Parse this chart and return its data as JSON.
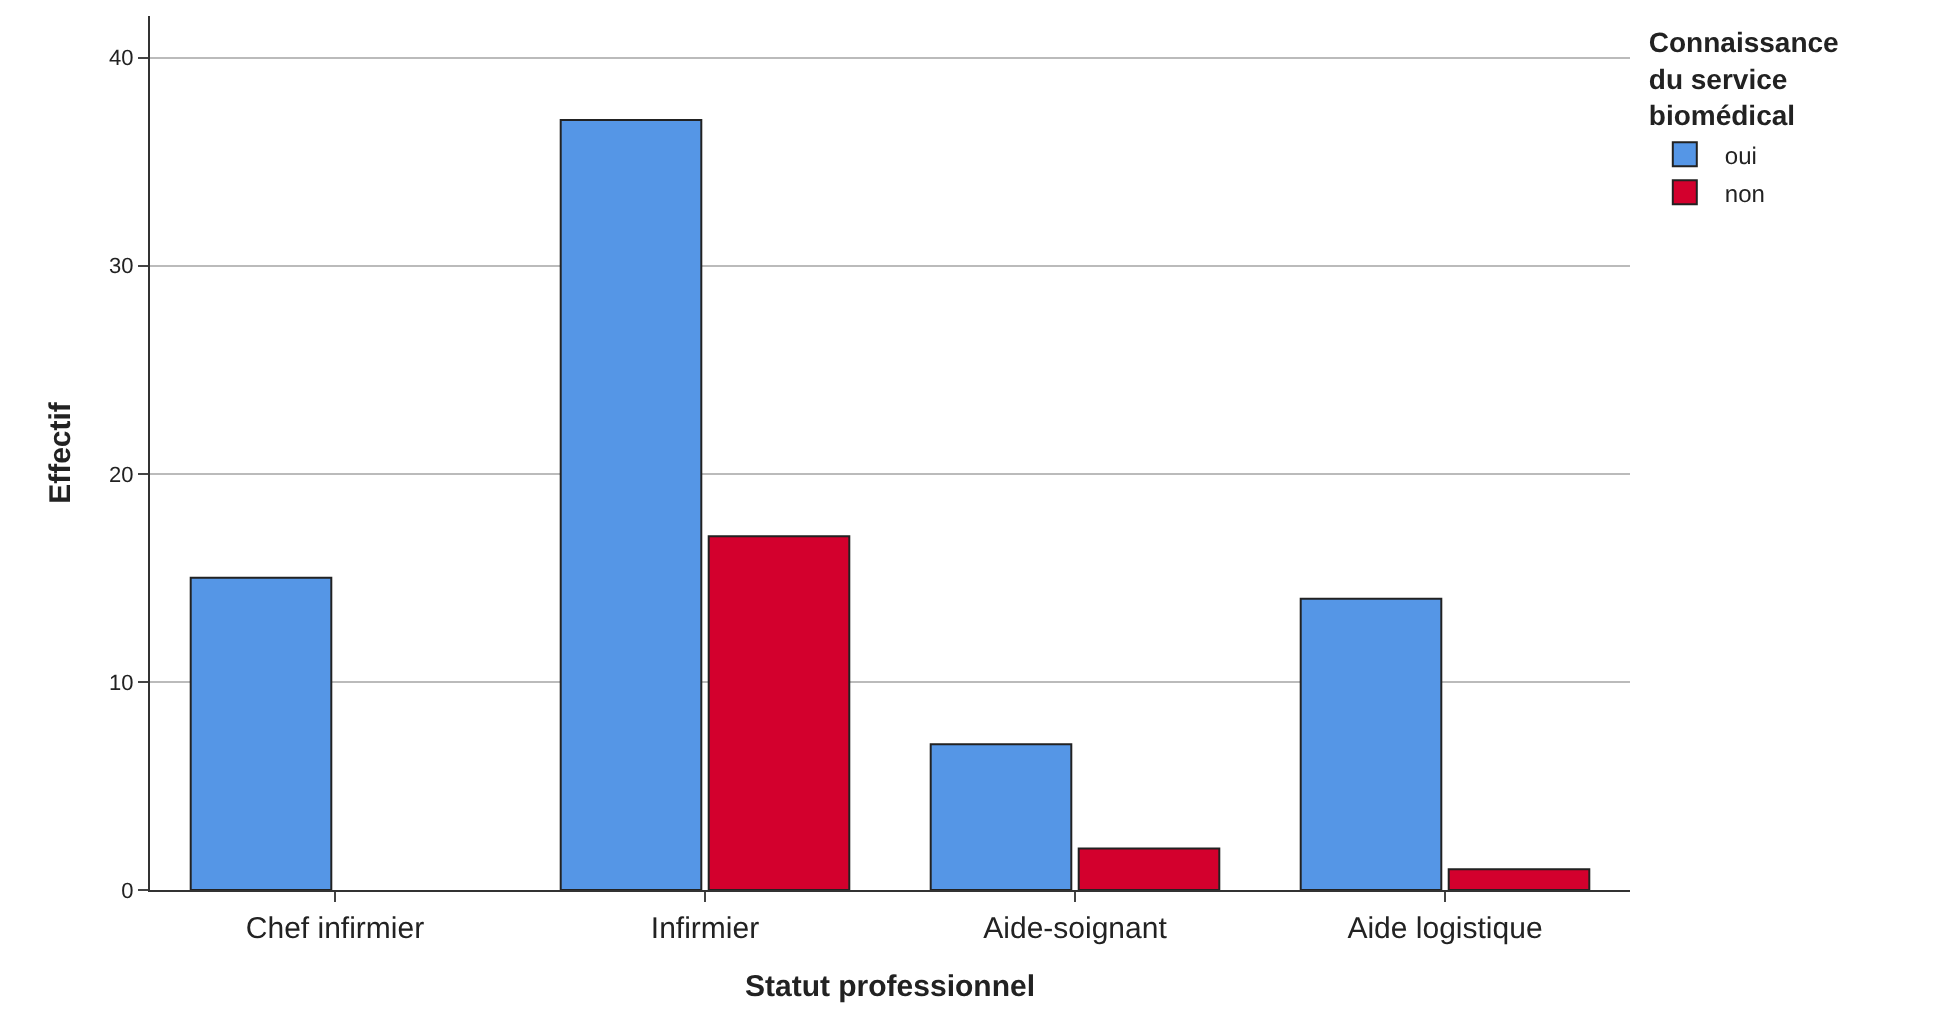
{
  "chart_data": {
    "type": "bar",
    "xlabel": "Statut professionnel",
    "ylabel": "Effectif",
    "legend_title": "Connaissance\ndu service\nbiomédical",
    "categories": [
      "Chef infirmier",
      "Infirmier",
      "Aide-soignant",
      "Aide logistique"
    ],
    "series": [
      {
        "name": "oui",
        "color": "#5596e6",
        "values": [
          15,
          37,
          7,
          14
        ]
      },
      {
        "name": "non",
        "color": "#d3002d",
        "values": [
          null,
          17,
          2,
          1
        ]
      }
    ],
    "ylim": [
      0,
      42
    ],
    "yticks": [
      0,
      10,
      20,
      30,
      40
    ],
    "grid": "y",
    "legend": "top right"
  }
}
